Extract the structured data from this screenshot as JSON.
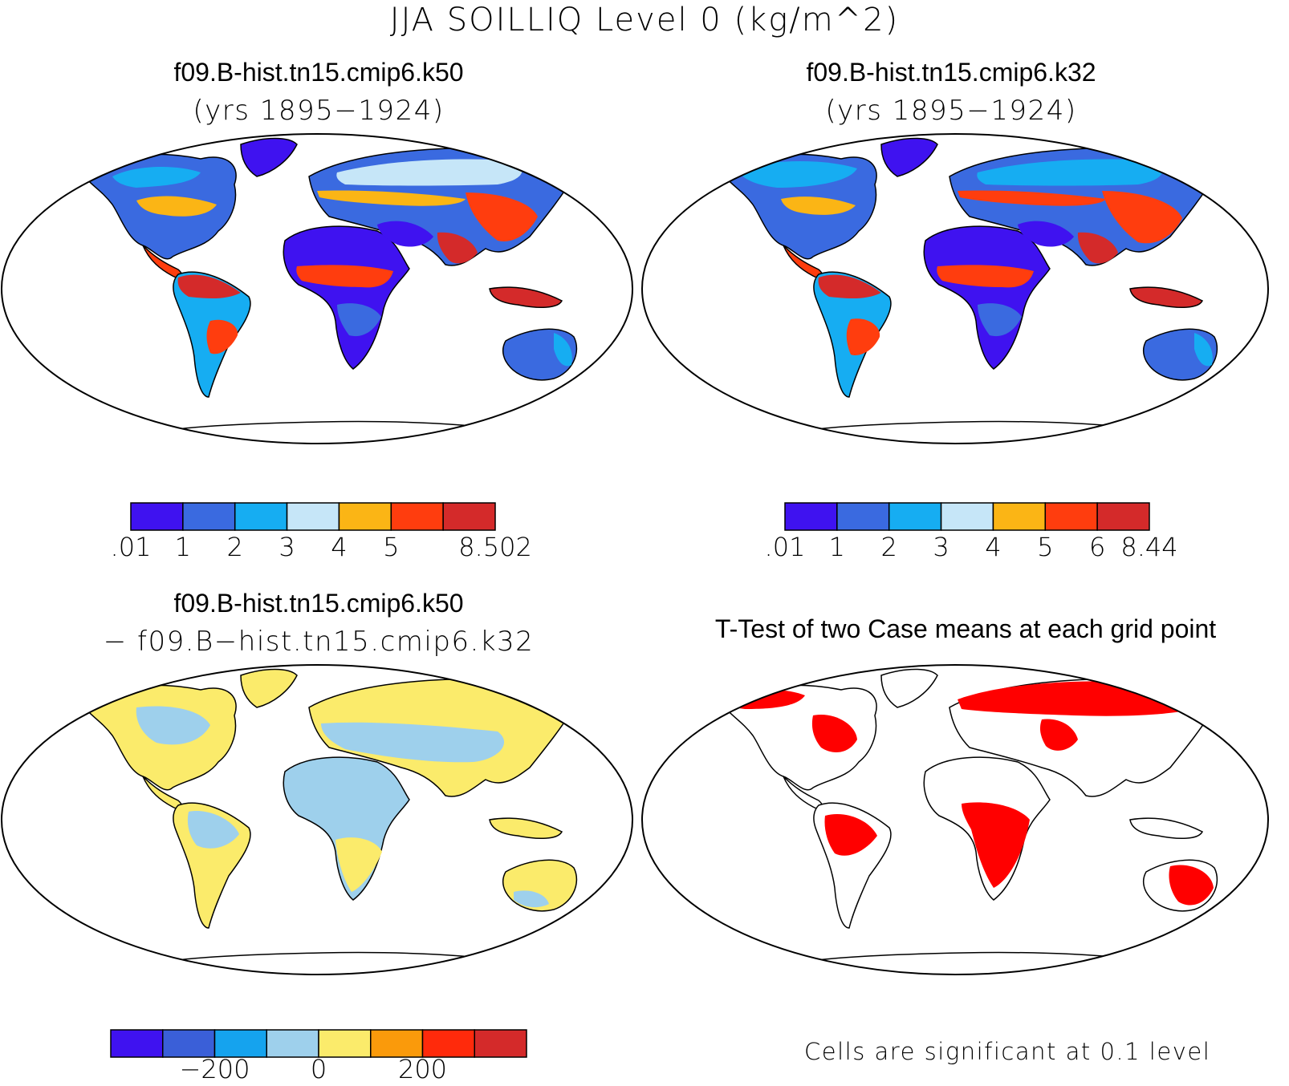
{
  "title": "JJA SOILLIQ Level 0 (kg/m^2)",
  "panels": [
    {
      "title": "f09.B-hist.tn15.cmip6.k50",
      "subtitle": "(yrs 1895−1924)"
    },
    {
      "title": "f09.B-hist.tn15.cmip6.k32",
      "subtitle": "(yrs 1895−1924)"
    },
    {
      "title": "f09.B-hist.tn15.cmip6.k50",
      "subtitle": "− f09.B−hist.tn15.cmip6.k32"
    },
    {
      "title": "T-Test of two Case means at each grid point",
      "subtitle": ""
    }
  ],
  "colorbars": [
    {
      "colors": [
        "#3f12f0",
        "#3a6ae0",
        "#16adf2",
        "#c6e6f8",
        "#fbb515",
        "#ff3d0e",
        "#d42a2a"
      ],
      "labels": [
        ".01",
        "1",
        "2",
        "3",
        "4",
        "5",
        "8.502"
      ],
      "label_at": [
        0,
        1,
        2,
        3,
        4,
        5,
        7
      ]
    },
    {
      "colors": [
        "#3f12f0",
        "#3a6ae0",
        "#16adf2",
        "#c6e6f8",
        "#fbb515",
        "#ff3d0e",
        "#d42a2a"
      ],
      "labels": [
        ".01",
        "1",
        "2",
        "3",
        "4",
        "5",
        "6",
        "8.44"
      ],
      "label_at": [
        0,
        1,
        2,
        3,
        4,
        5,
        6,
        7
      ]
    },
    {
      "colors": [
        "#3f12f0",
        "#3a5fd8",
        "#15a3ee",
        "#9ed0ec",
        "#fbeb6b",
        "#fa9a0b",
        "#ff2a0b",
        "#d42a2a"
      ],
      "labels": [
        "−200",
        "0",
        "200"
      ],
      "label_at": [
        2,
        4,
        6
      ]
    }
  ],
  "note": "Cells are significant at 0.1 level"
}
